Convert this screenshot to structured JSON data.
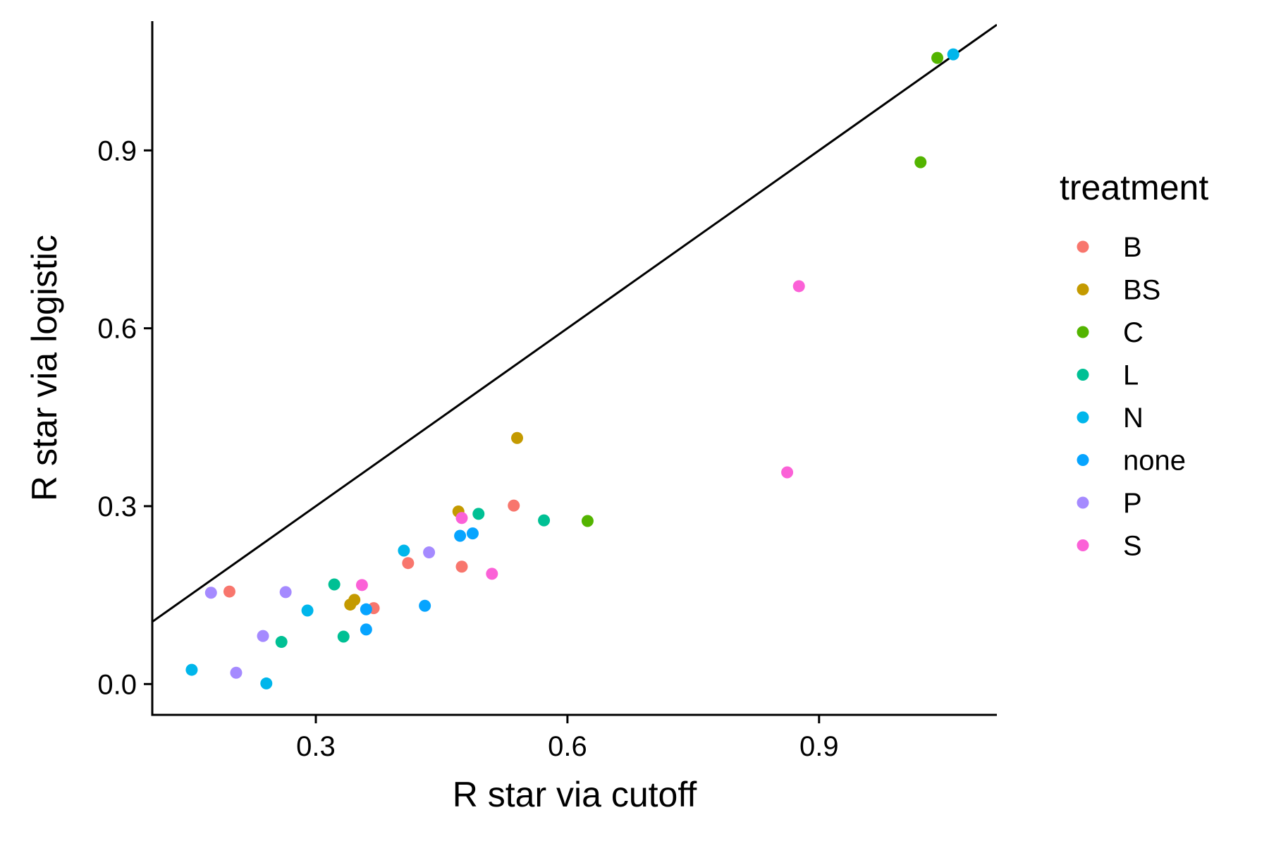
{
  "chart_data": {
    "type": "scatter",
    "title": "",
    "xlabel": "R star via cutoff",
    "ylabel": "R star via logistic",
    "xlim": [
      0.105,
      1.112
    ],
    "ylim": [
      -0.052,
      1.118
    ],
    "x_ticks": [
      0.3,
      0.6,
      0.9
    ],
    "y_ticks": [
      0.0,
      0.3,
      0.6,
      0.9
    ],
    "x_tick_labels": [
      "0.3",
      "0.6",
      "0.9"
    ],
    "y_tick_labels": [
      "0.0",
      "0.3",
      "0.6",
      "0.9"
    ],
    "grid": false,
    "reference_line": {
      "type": "identity",
      "slope": 1,
      "intercept": 0
    },
    "legend": {
      "title": "treatment",
      "position": "right"
    },
    "series": [
      {
        "name": "B",
        "color": "#F8766D",
        "points": [
          [
            0.197,
            0.156
          ],
          [
            0.369,
            0.128
          ],
          [
            0.41,
            0.204
          ],
          [
            0.474,
            0.198
          ],
          [
            0.536,
            0.301
          ]
        ]
      },
      {
        "name": "BS",
        "color": "#C49A00",
        "points": [
          [
            0.341,
            0.134
          ],
          [
            0.346,
            0.142
          ],
          [
            0.47,
            0.291
          ],
          [
            0.54,
            0.415
          ]
        ]
      },
      {
        "name": "C",
        "color": "#53B400",
        "points": [
          [
            0.624,
            0.275
          ],
          [
            1.021,
            0.88
          ],
          [
            1.041,
            1.056
          ]
        ]
      },
      {
        "name": "L",
        "color": "#00C094",
        "points": [
          [
            0.259,
            0.071
          ],
          [
            0.322,
            0.168
          ],
          [
            0.333,
            0.08
          ],
          [
            0.494,
            0.287
          ],
          [
            0.572,
            0.276
          ]
        ]
      },
      {
        "name": "N",
        "color": "#00B6EB",
        "points": [
          [
            0.152,
            0.024
          ],
          [
            0.241,
            0.001
          ],
          [
            0.29,
            0.124
          ],
          [
            0.405,
            0.225
          ],
          [
            1.06,
            1.062
          ]
        ]
      },
      {
        "name": "none",
        "color": "#06A4FF",
        "points": [
          [
            0.36,
            0.126
          ],
          [
            0.36,
            0.092
          ],
          [
            0.43,
            0.132
          ],
          [
            0.472,
            0.25
          ],
          [
            0.487,
            0.254
          ]
        ]
      },
      {
        "name": "P",
        "color": "#A58AFF",
        "points": [
          [
            0.175,
            0.154
          ],
          [
            0.205,
            0.019
          ],
          [
            0.237,
            0.081
          ],
          [
            0.264,
            0.155
          ],
          [
            0.435,
            0.222
          ]
        ]
      },
      {
        "name": "S",
        "color": "#FB61D7",
        "points": [
          [
            0.355,
            0.167
          ],
          [
            0.474,
            0.28
          ],
          [
            0.51,
            0.186
          ],
          [
            0.862,
            0.357
          ],
          [
            0.876,
            0.671
          ]
        ]
      }
    ]
  }
}
